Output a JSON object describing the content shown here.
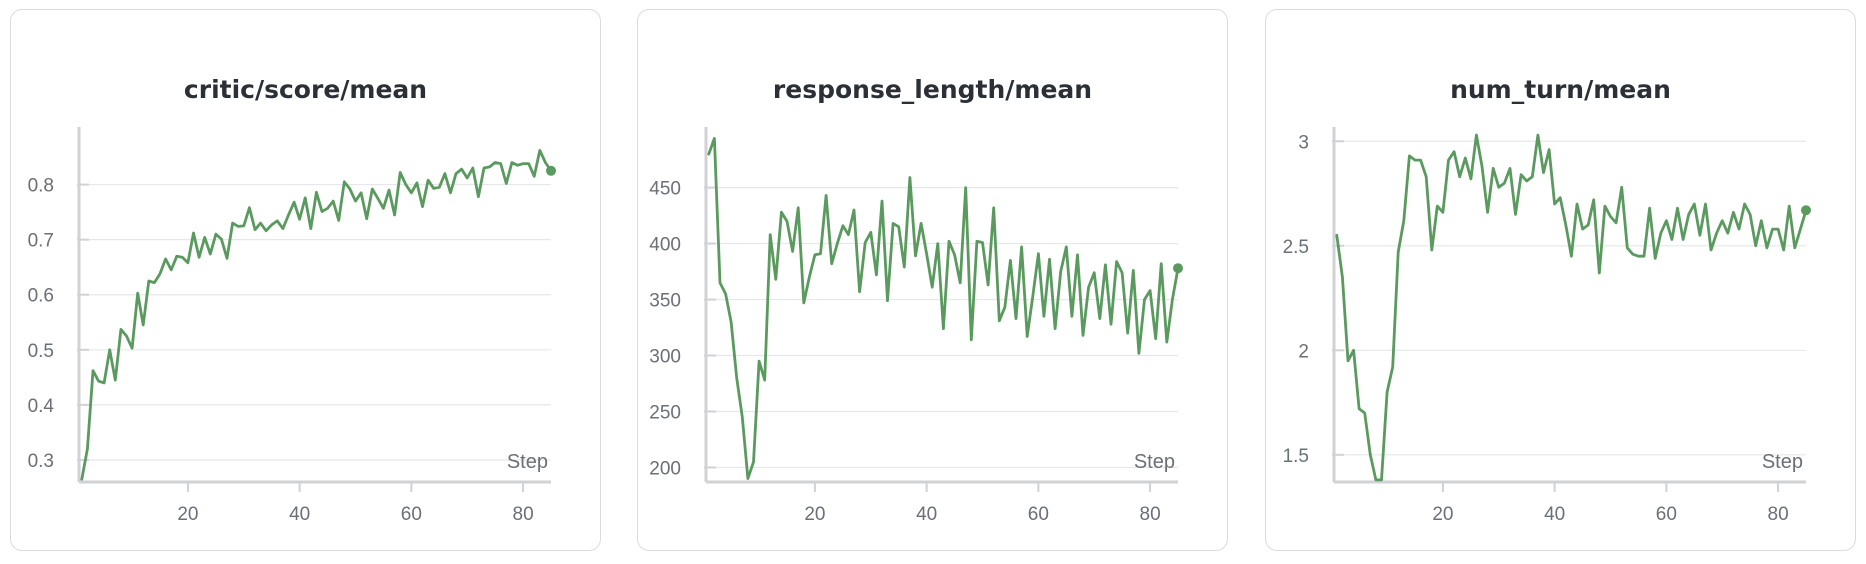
{
  "line_color": "#5a9a5f",
  "chart_data": [
    {
      "type": "line",
      "title": "critic/score/mean",
      "xlabel": "Step",
      "ylabel": "",
      "xlim": [
        0.5,
        85
      ],
      "ylim": [
        0.26,
        0.89
      ],
      "xticks": [
        20,
        40,
        60,
        80
      ],
      "yticks": [
        0.3,
        0.4,
        0.5,
        0.6,
        0.7,
        0.8
      ],
      "yticklabels": [
        "0.3",
        "0.4",
        "0.5",
        "0.6",
        "0.7",
        "0.8"
      ],
      "grid": true,
      "series": [
        {
          "x": [
            1,
            2,
            3,
            4,
            5,
            6,
            7,
            8,
            9,
            10,
            11,
            12,
            13,
            14,
            15,
            16,
            17,
            18,
            19,
            20,
            21,
            22,
            23,
            24,
            25,
            26,
            27,
            28,
            29,
            30,
            31,
            32,
            33,
            34,
            35,
            36,
            37,
            38,
            39,
            40,
            41,
            42,
            43,
            44,
            45,
            46,
            47,
            48,
            49,
            50,
            51,
            52,
            53,
            54,
            55,
            56,
            57,
            58,
            59,
            60,
            61,
            62,
            63,
            64,
            65,
            66,
            67,
            68,
            69,
            70,
            71,
            72,
            73,
            74,
            75,
            76,
            77,
            78,
            79,
            80,
            81,
            82,
            83,
            84,
            85
          ],
          "y": [
            0.265,
            0.32,
            0.462,
            0.443,
            0.44,
            0.5,
            0.445,
            0.537,
            0.525,
            0.503,
            0.603,
            0.545,
            0.625,
            0.622,
            0.638,
            0.665,
            0.645,
            0.67,
            0.668,
            0.658,
            0.712,
            0.668,
            0.704,
            0.674,
            0.71,
            0.701,
            0.666,
            0.73,
            0.724,
            0.725,
            0.758,
            0.718,
            0.73,
            0.716,
            0.727,
            0.734,
            0.72,
            0.745,
            0.768,
            0.737,
            0.776,
            0.72,
            0.786,
            0.751,
            0.757,
            0.77,
            0.735,
            0.805,
            0.792,
            0.77,
            0.785,
            0.738,
            0.792,
            0.775,
            0.757,
            0.79,
            0.745,
            0.822,
            0.8,
            0.785,
            0.803,
            0.76,
            0.808,
            0.793,
            0.795,
            0.82,
            0.785,
            0.82,
            0.828,
            0.812,
            0.83,
            0.778,
            0.83,
            0.832,
            0.84,
            0.838,
            0.802,
            0.84,
            0.835,
            0.838,
            0.838,
            0.815,
            0.862,
            0.84,
            0.825
          ]
        }
      ]
    },
    {
      "type": "line",
      "title": "response_length/mean",
      "xlabel": "Step",
      "ylabel": "",
      "xlim": [
        0.5,
        85
      ],
      "ylim": [
        187,
        497
      ],
      "xticks": [
        20,
        40,
        60,
        80
      ],
      "yticks": [
        200,
        250,
        300,
        350,
        400,
        450
      ],
      "yticklabels": [
        "200",
        "250",
        "300",
        "350",
        "400",
        "450"
      ],
      "grid": true,
      "series": [
        {
          "x": [
            1,
            2,
            3,
            4,
            5,
            6,
            7,
            8,
            9,
            10,
            11,
            12,
            13,
            14,
            15,
            16,
            17,
            18,
            19,
            20,
            21,
            22,
            23,
            24,
            25,
            26,
            27,
            28,
            29,
            30,
            31,
            32,
            33,
            34,
            35,
            36,
            37,
            38,
            39,
            40,
            41,
            42,
            43,
            44,
            45,
            46,
            47,
            48,
            49,
            50,
            51,
            52,
            53,
            54,
            55,
            56,
            57,
            58,
            59,
            60,
            61,
            62,
            63,
            64,
            65,
            66,
            67,
            68,
            69,
            70,
            71,
            72,
            73,
            74,
            75,
            76,
            77,
            78,
            79,
            80,
            81,
            82,
            83,
            84,
            85
          ],
          "y": [
            480,
            494,
            365,
            355,
            330,
            280,
            245,
            190,
            205,
            295,
            278,
            408,
            368,
            428,
            420,
            393,
            432,
            347,
            370,
            390,
            391,
            443,
            382,
            400,
            416,
            408,
            430,
            357,
            401,
            410,
            372,
            438,
            349,
            418,
            415,
            379,
            459,
            389,
            418,
            391,
            361,
            400,
            324,
            402,
            390,
            365,
            450,
            314,
            402,
            401,
            363,
            432,
            331,
            343,
            385,
            333,
            397,
            317,
            353,
            391,
            335,
            386,
            324,
            375,
            397,
            335,
            390,
            318,
            361,
            374,
            333,
            381,
            328,
            384,
            374,
            320,
            376,
            302,
            350,
            358,
            315,
            382,
            312,
            350,
            378
          ]
        }
      ]
    },
    {
      "type": "line",
      "title": "num_turn/mean",
      "xlabel": "Step",
      "ylabel": "",
      "xlim": [
        0.5,
        85
      ],
      "ylim": [
        1.37,
        3.03
      ],
      "xticks": [
        20,
        40,
        60,
        80
      ],
      "yticks": [
        1.5,
        2,
        2.5,
        3
      ],
      "yticklabels": [
        "1.5",
        "2",
        "2.5",
        "3"
      ],
      "grid": true,
      "series": [
        {
          "x": [
            1,
            2,
            3,
            4,
            5,
            6,
            7,
            8,
            9,
            10,
            11,
            12,
            13,
            14,
            15,
            16,
            17,
            18,
            19,
            20,
            21,
            22,
            23,
            24,
            25,
            26,
            27,
            28,
            29,
            30,
            31,
            32,
            33,
            34,
            35,
            36,
            37,
            38,
            39,
            40,
            41,
            42,
            43,
            44,
            45,
            46,
            47,
            48,
            49,
            50,
            51,
            52,
            53,
            54,
            55,
            56,
            57,
            58,
            59,
            60,
            61,
            62,
            63,
            64,
            65,
            66,
            67,
            68,
            69,
            70,
            71,
            72,
            73,
            74,
            75,
            76,
            77,
            78,
            79,
            80,
            81,
            82,
            83,
            84,
            85
          ],
          "y": [
            2.55,
            2.35,
            1.95,
            2.0,
            1.72,
            1.7,
            1.5,
            1.38,
            1.38,
            1.8,
            1.92,
            2.47,
            2.62,
            2.93,
            2.91,
            2.91,
            2.83,
            2.48,
            2.69,
            2.66,
            2.91,
            2.95,
            2.83,
            2.92,
            2.82,
            3.03,
            2.88,
            2.66,
            2.87,
            2.78,
            2.8,
            2.87,
            2.65,
            2.84,
            2.81,
            2.83,
            3.03,
            2.85,
            2.96,
            2.7,
            2.73,
            2.6,
            2.45,
            2.7,
            2.58,
            2.6,
            2.72,
            2.37,
            2.69,
            2.64,
            2.61,
            2.78,
            2.49,
            2.46,
            2.45,
            2.45,
            2.68,
            2.44,
            2.56,
            2.62,
            2.53,
            2.68,
            2.53,
            2.65,
            2.7,
            2.55,
            2.7,
            2.48,
            2.56,
            2.62,
            2.56,
            2.66,
            2.58,
            2.7,
            2.65,
            2.5,
            2.62,
            2.49,
            2.58,
            2.58,
            2.48,
            2.69,
            2.49,
            2.58,
            2.67
          ]
        }
      ]
    }
  ]
}
